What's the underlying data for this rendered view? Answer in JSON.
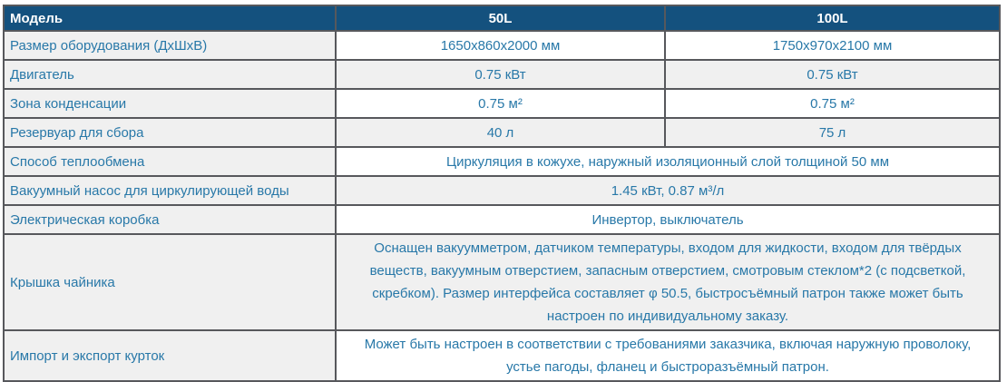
{
  "table": {
    "header": {
      "model": "Модель",
      "col_50l": "50L",
      "col_100l": "100L"
    },
    "rows": [
      {
        "label": "Размер оборудования (ДхШхВ)",
        "values": [
          "1650х860х2000 мм",
          "1750х970х2100 мм"
        ]
      },
      {
        "label": "Двигатель",
        "values": [
          "0.75 кВт",
          "0.75 кВт"
        ]
      },
      {
        "label": "Зона конденсации",
        "values": [
          "0.75 м²",
          "0.75 м²"
        ]
      },
      {
        "label": "Резервуар для сбора",
        "values": [
          "40 л",
          "75 л"
        ]
      },
      {
        "label": "Способ теплообмена",
        "value": "Циркуляция в кожухе, наружный изоляционный слой толщиной 50 мм"
      },
      {
        "label": "Вакуумный насос для циркулирующей воды",
        "value": "1.45 кВт, 0.87 м³/л"
      },
      {
        "label": "Электрическая коробка",
        "value": "Инвертор, выключатель"
      },
      {
        "label": "Крышка чайника",
        "value": "Оснащен вакуумметром, датчиком температуры, входом для жидкости, входом для твёрдых веществ, вакуумным отверстием, запасным отверстием, смотровым стеклом*2 (с подсветкой, скребком). Размер интерфейса составляет φ 50.5, быстросъёмный патрон также может быть настроен по индивидуальному заказу."
      },
      {
        "label": "Импорт и экспорт курток",
        "value": "Может быть настроен в соответствии с требованиями заказчика, включая наружную проволоку, устье пагоды, фланец и быстроразъёмный патрон."
      }
    ],
    "colors": {
      "header_bg": "#14517E",
      "header_text": "#FFFFFF",
      "body_text": "#2878A8",
      "row_alt_bg": "#F0F0F0",
      "row_bg": "#FFFFFF",
      "border": "#57585C"
    }
  }
}
